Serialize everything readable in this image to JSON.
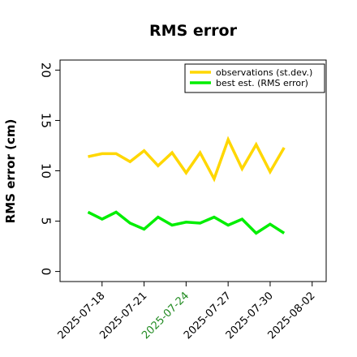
{
  "chart_data": {
    "type": "line",
    "title": "RMS error",
    "ylabel": "RMS error (cm)",
    "xlabel": "",
    "ylim": [
      -1,
      21
    ],
    "yticks": [
      0,
      5,
      10,
      15,
      20
    ],
    "xlim": [
      "2025-07-15",
      "2025-08-03"
    ],
    "xticks": [
      "2025-07-18",
      "2025-07-21",
      "2025-07-24",
      "2025-07-27",
      "2025-07-30",
      "2025-08-02"
    ],
    "xtick_highlight": "2025-07-24",
    "highlight_color": "#228B22",
    "x": [
      "2025-07-17",
      "2025-07-18",
      "2025-07-19",
      "2025-07-20",
      "2025-07-21",
      "2025-07-22",
      "2025-07-23",
      "2025-07-24",
      "2025-07-25",
      "2025-07-26",
      "2025-07-27",
      "2025-07-28",
      "2025-07-29",
      "2025-07-30",
      "2025-07-31"
    ],
    "series": [
      {
        "name": "observations (st.dev.)",
        "color": "#FFD700",
        "values": [
          11.4,
          11.7,
          11.7,
          10.9,
          12.0,
          10.5,
          11.8,
          9.8,
          11.8,
          9.2,
          13.1,
          10.2,
          12.6,
          9.9,
          12.3
        ]
      },
      {
        "name": "best est. (RMS error)",
        "color": "#00EE00",
        "values": [
          5.9,
          5.2,
          5.9,
          4.8,
          4.2,
          5.4,
          4.6,
          4.9,
          4.8,
          5.4,
          4.6,
          5.2,
          3.8,
          4.7,
          3.8
        ]
      }
    ],
    "grid": false,
    "legend": "top-right"
  }
}
